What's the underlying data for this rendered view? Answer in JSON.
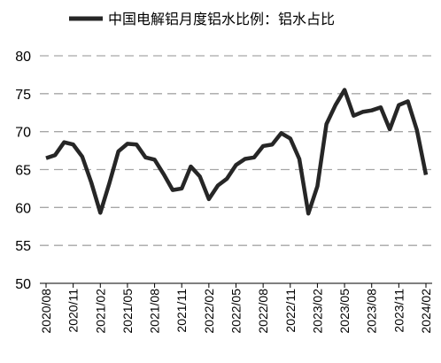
{
  "legend": {
    "label": "中国电解铝月度铝水比例：铝水占比",
    "position": "top"
  },
  "style": {
    "line_color": "#262626",
    "grid_color": "#a6a6a6",
    "axis_color": "#000000",
    "background": "#ffffff"
  },
  "chart_data": {
    "type": "line",
    "title": "",
    "xlabel": "",
    "ylabel": "",
    "ylim": [
      50,
      80
    ],
    "yticks": [
      50,
      55,
      60,
      65,
      70,
      75,
      80
    ],
    "grid": {
      "y": true,
      "x": false,
      "style": "dashed"
    },
    "legend_position": "top",
    "x": [
      "2020/08",
      "2020/09",
      "2020/10",
      "2020/11",
      "2020/12",
      "2021/01",
      "2021/02",
      "2021/03",
      "2021/04",
      "2021/05",
      "2021/06",
      "2021/07",
      "2021/08",
      "2021/09",
      "2021/10",
      "2021/11",
      "2021/12",
      "2022/01",
      "2022/02",
      "2022/03",
      "2022/04",
      "2022/05",
      "2022/06",
      "2022/07",
      "2022/08",
      "2022/09",
      "2022/10",
      "2022/11",
      "2022/12",
      "2023/01",
      "2023/02",
      "2023/03",
      "2023/04",
      "2023/05",
      "2023/06",
      "2023/07",
      "2023/08",
      "2023/09",
      "2023/10",
      "2023/11",
      "2023/12",
      "2024/01",
      "2024/02"
    ],
    "xtick_labels": [
      "2020/08",
      "2020/11",
      "2021/02",
      "2021/05",
      "2021/08",
      "2021/11",
      "2022/02",
      "2022/05",
      "2022/08",
      "2022/11",
      "2023/02",
      "2023/05",
      "2023/08",
      "2023/11",
      "2024/02"
    ],
    "series": [
      {
        "name": "中国电解铝月度铝水比例：铝水占比",
        "values": [
          66.5,
          66.9,
          68.6,
          68.3,
          66.7,
          63.3,
          59.3,
          63.2,
          67.4,
          68.4,
          68.3,
          66.6,
          66.3,
          64.4,
          62.3,
          62.5,
          65.4,
          64.1,
          61.1,
          62.9,
          63.8,
          65.6,
          66.4,
          66.6,
          68.1,
          68.3,
          69.8,
          69.1,
          66.4,
          59.2,
          62.8,
          71.0,
          73.5,
          75.5,
          72.1,
          72.6,
          72.8,
          73.2,
          70.3,
          73.5,
          74.0,
          70.2,
          64.3
        ]
      }
    ]
  }
}
